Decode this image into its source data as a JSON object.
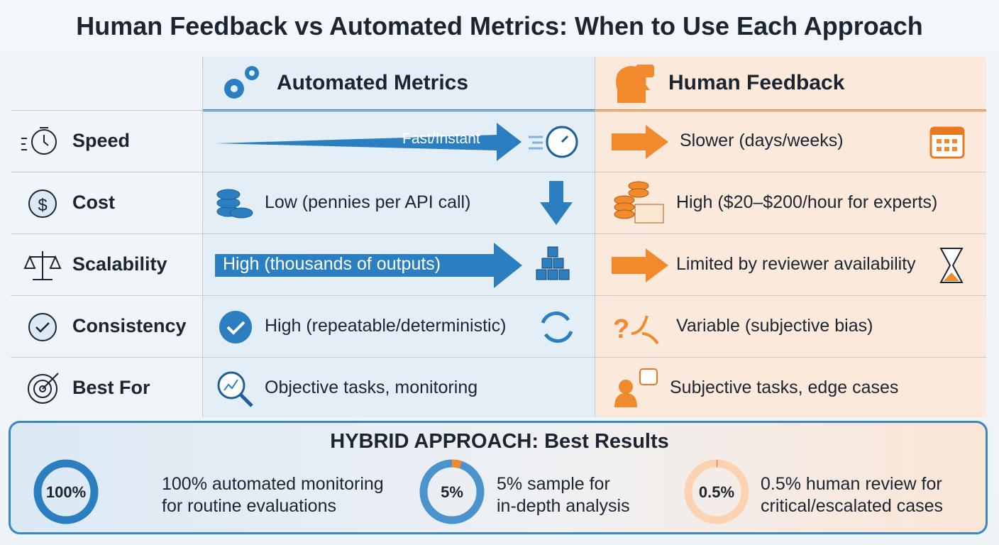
{
  "title": "Human Feedback vs Automated Metrics: When to Use Each Approach",
  "columns": [
    "Automated Metrics",
    "Human Feedback"
  ],
  "rows": [
    {
      "criterion": "Speed",
      "automated": "Fast/Instant",
      "human": "Slower (days/weeks)"
    },
    {
      "criterion": "Cost",
      "automated": "Low (pennies per API call)",
      "human": "High ($20–$200/hour for experts)"
    },
    {
      "criterion": "Scalability",
      "automated": "High (thousands of outputs)",
      "human": "Limited by reviewer availability"
    },
    {
      "criterion": "Consistency",
      "automated": "High (repeatable/deterministic)",
      "human": "Variable (subjective bias)"
    },
    {
      "criterion": "Best For",
      "automated": "Objective tasks, monitoring",
      "human": "Subjective tasks, edge cases"
    }
  ],
  "hybrid": {
    "title": "HYBRID APPROACH: Best Results",
    "items": [
      {
        "value": 100,
        "label": "100%",
        "lines": [
          "100% automated monitoring",
          "for routine evaluations"
        ],
        "ring_color": "#cfe2f1",
        "arc_color": "#2b7fc0"
      },
      {
        "value": 5,
        "label": "5%",
        "lines": [
          "5% sample for",
          "in-depth analysis"
        ],
        "ring_color": "#4a93cc",
        "arc_color": "#f08a2c"
      },
      {
        "value": 0.5,
        "label": "0.5%",
        "lines": [
          "0.5% human review for",
          "critical/escalated cases"
        ],
        "ring_color": "#fbd3b0",
        "arc_color": "#e8791f"
      }
    ]
  }
}
